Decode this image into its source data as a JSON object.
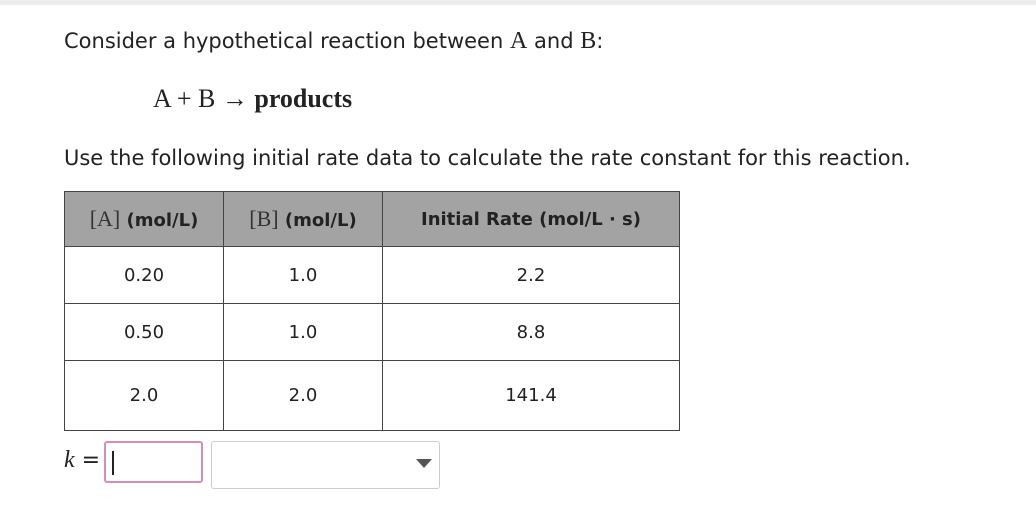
{
  "intro": {
    "lead": "Consider a hypothetical reaction between",
    "a": "A",
    "and": "and",
    "b": "B",
    "colon": ":"
  },
  "equation": {
    "reactants": "A + B →",
    "products": "products"
  },
  "instruction": "Use the following initial rate data to calculate the rate constant for this reaction.",
  "table": {
    "headers": [
      {
        "math": "[A]",
        "unit": "(mol/L)"
      },
      {
        "math": "[B]",
        "unit": "(mol/L)"
      },
      {
        "text": "Initial Rate (mol/L · s)"
      }
    ],
    "rows": [
      [
        "0.20",
        "1.0",
        "2.2"
      ],
      [
        "0.50",
        "1.0",
        "8.8"
      ],
      [
        "2.0",
        "2.0",
        "141.4"
      ]
    ]
  },
  "answer": {
    "variable": "k",
    "equals": "="
  }
}
